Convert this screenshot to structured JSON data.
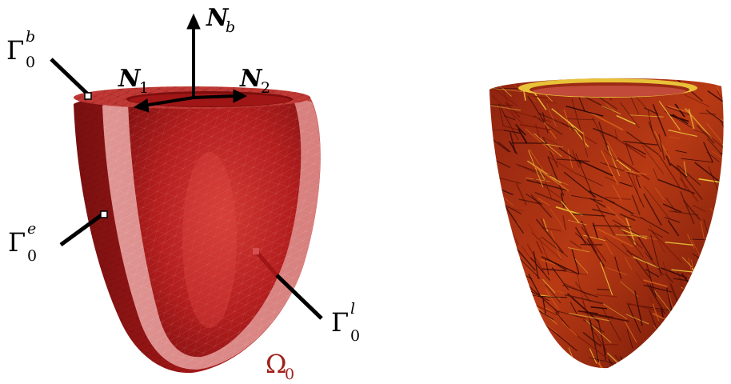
{
  "figure": {
    "labels": {
      "normal_basal": {
        "main": "N",
        "sub": "b"
      },
      "normal_1": {
        "main": "N",
        "sub": "1"
      },
      "normal_2": {
        "main": "N",
        "sub": "2"
      },
      "boundary_basal": {
        "main": "Γ",
        "sup": "b",
        "sub": "0"
      },
      "boundary_epicardial": {
        "main": "Γ",
        "sup": "e",
        "sub": "0"
      },
      "boundary_endocardial": {
        "main": "Γ",
        "sup": "l",
        "sub": "0"
      },
      "domain": {
        "main": "Ω",
        "sub": "0"
      }
    },
    "colors": {
      "myocardium_dark": "#8e1414",
      "myocardium_mid": "#b81c1c",
      "myocardium_light": "#e07a78",
      "wall_pink": "#e9a3a1",
      "domain_label": "#a0201c",
      "fiber_dark": "#3a0a06",
      "fiber_yellow": "#e8c238",
      "fiber_orange": "#d8641a"
    },
    "icons": {
      "left_panel": "ventricle-mesh-geometry",
      "right_panel": "ventricle-fiber-field"
    }
  }
}
